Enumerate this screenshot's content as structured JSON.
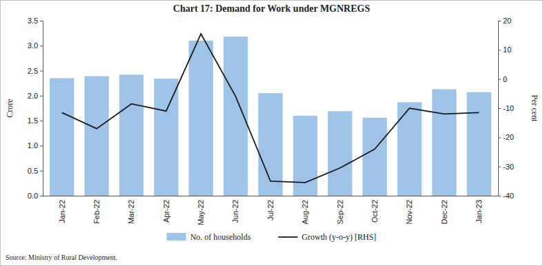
{
  "chart_data": {
    "type": "bar",
    "title": "Chart 17: Demand for Work under MGNREGS",
    "y_label": "Crore",
    "y2_label": "Per cent",
    "source": "Source: Ministry of Rural Development.",
    "categories": [
      "Jan-22",
      "Feb-22",
      "Mar-22",
      "Apr-22",
      "May-22",
      "Jun-22",
      "Jul-22",
      "Aug-22",
      "Sep-22",
      "Oct-22",
      "Nov-22",
      "Dec-22",
      "Jan-23"
    ],
    "series": [
      {
        "name": "No. of households",
        "type": "bar",
        "color": "#9dc3e6",
        "values": [
          2.35,
          2.39,
          2.42,
          2.34,
          3.1,
          3.18,
          2.05,
          1.6,
          1.69,
          1.56,
          1.87,
          2.13,
          2.07
        ]
      },
      {
        "name": "Growth (y-o-y) [RHS]",
        "type": "line",
        "color": "#1a1a1a",
        "axis": "y2",
        "values": [
          -11.5,
          -17,
          -8.5,
          -11,
          15.5,
          -6,
          -35,
          -35.5,
          -30.5,
          -24,
          -10,
          -12,
          -11.5
        ]
      }
    ],
    "ylim": [
      0,
      3.5
    ],
    "yticks": [
      {
        "value": 0,
        "label": "0.0"
      },
      0.5,
      {
        "value": 1,
        "label": "1.0"
      },
      1.5,
      {
        "value": 2,
        "label": "2.0"
      },
      2.5,
      {
        "value": 3,
        "label": "3.0"
      },
      3.5
    ],
    "y2lim": [
      -40,
      20
    ],
    "y2ticks": [
      -40,
      -30,
      -20,
      -10,
      0,
      10,
      20
    ],
    "grid": false,
    "legend": "bottom"
  }
}
